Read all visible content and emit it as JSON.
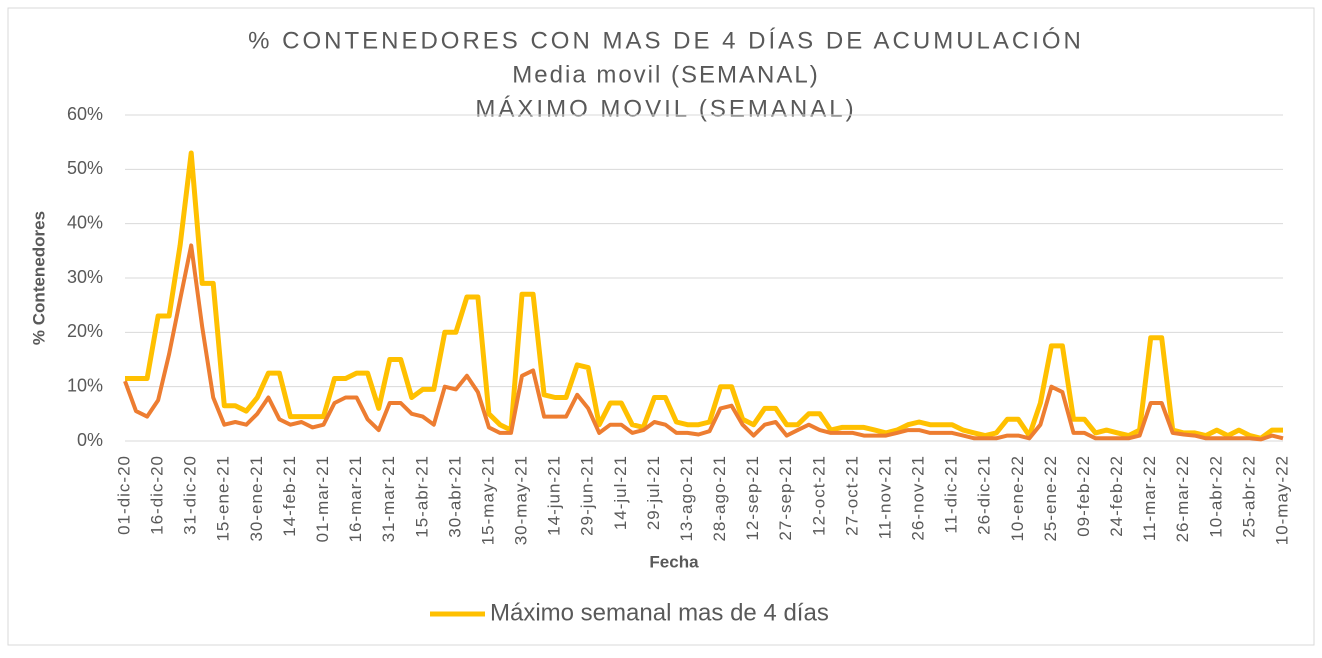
{
  "chart_data": {
    "type": "line",
    "title": "% CONTENEDORES CON MAS DE 4 DÍAS DE ACUMULACIÓN",
    "subtitle": [
      "Media movil (SEMANAL)",
      "MÁXIMO MOVIL (SEMANAL)"
    ],
    "x_label": "Fecha",
    "y_label": "% Contenedores",
    "categories": [
      "01-dic-20",
      null,
      null,
      "16-dic-20",
      null,
      null,
      "31-dic-20",
      null,
      null,
      "15-ene-21",
      null,
      null,
      "30-ene-21",
      null,
      null,
      "14-feb-21",
      null,
      null,
      "01-mar-21",
      null,
      null,
      "16-mar-21",
      null,
      null,
      "31-mar-21",
      null,
      null,
      "15-abr-21",
      null,
      null,
      "30-abr-21",
      null,
      null,
      "15-may-21",
      null,
      null,
      "30-may-21",
      null,
      null,
      "14-jun-21",
      null,
      null,
      "29-jun-21",
      null,
      null,
      "14-jul-21",
      null,
      null,
      "29-jul-21",
      null,
      null,
      "13-ago-21",
      null,
      null,
      "28-ago-21",
      null,
      null,
      "12-sep-21",
      null,
      null,
      "27-sep-21",
      null,
      null,
      "12-oct-21",
      null,
      null,
      "27-oct-21",
      null,
      null,
      "11-nov-21",
      null,
      null,
      "26-nov-21",
      null,
      null,
      "11-dic-21",
      null,
      null,
      "26-dic-21",
      null,
      null,
      "10-ene-22",
      null,
      null,
      "25-ene-22",
      null,
      null,
      "09-feb-22",
      null,
      null,
      "24-feb-22",
      null,
      null,
      "11-mar-22",
      null,
      null,
      "26-mar-22",
      null,
      null,
      "10-abr-22",
      null,
      null,
      "25-abr-22",
      null,
      null,
      "10-may-22"
    ],
    "series": [
      {
        "name": "Máximo semanal mas de 4 días",
        "color": "#ffc000",
        "values": [
          11.5,
          11.5,
          11.5,
          23,
          23,
          36,
          53,
          29,
          29,
          6.5,
          6.5,
          5.5,
          8,
          12.5,
          12.5,
          4.5,
          4.5,
          4.5,
          4.5,
          11.5,
          11.5,
          12.5,
          12.5,
          6,
          15,
          15,
          8,
          9.5,
          9.5,
          20,
          20,
          26.5,
          26.5,
          5,
          3,
          2,
          27,
          27,
          8.5,
          8,
          8,
          14,
          13.5,
          3,
          7,
          7,
          3,
          2.5,
          8,
          8,
          3.5,
          3,
          3,
          3.5,
          10,
          10,
          4,
          3,
          6,
          6,
          3,
          3,
          5,
          5,
          2,
          2.5,
          2.5,
          2.5,
          2,
          1.5,
          2,
          3,
          3.5,
          3,
          3,
          3,
          2,
          1.5,
          1,
          1.5,
          4,
          4,
          1,
          7,
          17.5,
          17.5,
          4,
          4,
          1.5,
          2,
          1.5,
          1,
          2,
          19,
          19,
          2,
          1.5,
          1.5,
          1,
          2,
          1,
          2,
          1,
          0.5,
          2,
          2
        ]
      },
      {
        "color": "#ed7d31",
        "values": [
          11,
          5.5,
          4.5,
          7.5,
          16,
          26,
          36,
          21,
          8,
          3,
          3.5,
          3,
          5,
          8,
          4,
          3,
          3.5,
          2.5,
          3,
          7,
          8,
          8,
          4,
          2,
          7,
          7,
          5,
          4.5,
          3,
          10,
          9.5,
          12,
          9,
          2.5,
          1.5,
          1.5,
          12,
          13,
          4.5,
          4.5,
          4.5,
          8.5,
          6,
          1.5,
          3,
          3,
          1.5,
          2,
          3.5,
          3,
          1.5,
          1.5,
          1.2,
          1.8,
          6,
          6.5,
          3,
          1,
          3,
          3.5,
          1,
          2,
          3,
          2,
          1.5,
          1.5,
          1.5,
          1,
          1,
          1,
          1.5,
          2,
          2,
          1.5,
          1.5,
          1.5,
          1,
          0.5,
          0.5,
          0.5,
          1,
          1,
          0.5,
          3,
          10,
          9,
          1.5,
          1.5,
          0.5,
          0.5,
          0.5,
          0.5,
          1,
          7,
          7,
          1.5,
          1.2,
          1,
          0.5,
          0.5,
          0.5,
          0.5,
          0.5,
          0.3,
          1,
          0.5
        ]
      }
    ],
    "ylim": [
      0,
      60
    ],
    "yticks": [
      {
        "value": 0,
        "label": "0%"
      },
      {
        "value": 10,
        "label": "10%"
      },
      {
        "value": 20,
        "label": "20%"
      },
      {
        "value": 30,
        "label": "30%"
      },
      {
        "value": 40,
        "label": "40%"
      },
      {
        "value": 50,
        "label": "50%"
      },
      {
        "value": 60,
        "label": "60%"
      }
    ],
    "grid": true,
    "legend": "bottom"
  }
}
